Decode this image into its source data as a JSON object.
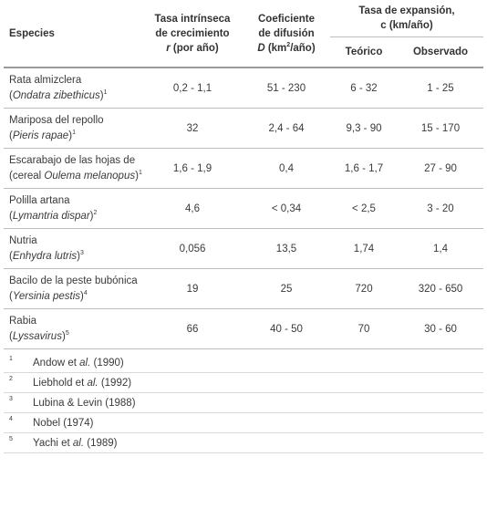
{
  "headers": {
    "species": "Especies",
    "growth_line1": "Tasa intrínseca",
    "growth_line2": "de crecimiento",
    "growth_var": "r",
    "growth_unit": " (por año)",
    "diffusion_line1": "Coeficiente",
    "diffusion_line2": "de difusión",
    "diffusion_var": "D",
    "diffusion_unit_a": " (km",
    "diffusion_unit_sup": "2",
    "diffusion_unit_b": "/año)",
    "expansion_line1": "Tasa de expansión,",
    "expansion_line2": "c (km/año)",
    "theoretical": "Teórico",
    "observed": "Observado"
  },
  "rows": [
    {
      "common": "Rata almizclera",
      "latin": "Ondatra zibethicus",
      "ref": "1",
      "latin_suffix": "",
      "r": "0,2 - 1,1",
      "d": "51 - 230",
      "theo": "6 - 32",
      "obs": "1 - 25"
    },
    {
      "common": "Mariposa del repollo",
      "latin": "Pieris rapae",
      "ref": "1",
      "latin_suffix": "",
      "r": "32",
      "d": "2,4 - 64",
      "theo": "9,3 - 90",
      "obs": "15 - 170"
    },
    {
      "common": "Escarabajo de las hojas de",
      "latin_prefix": "cereal ",
      "latin": "Oulema melanopus",
      "ref": "1",
      "latin_suffix": "",
      "r": "1,6 - 1,9",
      "d": "0,4",
      "theo": "1,6 - 1,7",
      "obs": "27 - 90"
    },
    {
      "common": "Polilla artana",
      "latin": "Lymantria dispar",
      "ref": "2",
      "latin_suffix": "",
      "r": "4,6",
      "d": "< 0,34",
      "theo": "< 2,5",
      "obs": "3 - 20"
    },
    {
      "common": "Nutria",
      "latin": "Enhydra lutris",
      "ref": "3",
      "latin_suffix": "",
      "r": "0,056",
      "d": "13,5",
      "theo": "1,74",
      "obs": "1,4"
    },
    {
      "common": "Bacilo de la peste bubónica",
      "latin": "Yersinia pestis",
      "ref": "4",
      "latin_suffix": "",
      "r": "19",
      "d": "25",
      "theo": "720",
      "obs": "320 - 650"
    },
    {
      "common": "Rabia",
      "latin": "Lyssavirus",
      "ref": "5",
      "latin_suffix": "",
      "r": "66",
      "d": "40 - 50",
      "theo": "70",
      "obs": "30 - 60"
    }
  ],
  "references": [
    {
      "num": "1",
      "author": "Andow et ",
      "etal": "al.",
      "year": " (1990)"
    },
    {
      "num": "2",
      "author": "Liebhold et ",
      "etal": "al.",
      "year": " (1992)"
    },
    {
      "num": "3",
      "author": "Lubina & Levin (1988)",
      "etal": "",
      "year": ""
    },
    {
      "num": "4",
      "author": "Nobel (1974)",
      "etal": "",
      "year": ""
    },
    {
      "num": "5",
      "author": "Yachi et ",
      "etal": "al.",
      "year": " (1989)"
    }
  ]
}
